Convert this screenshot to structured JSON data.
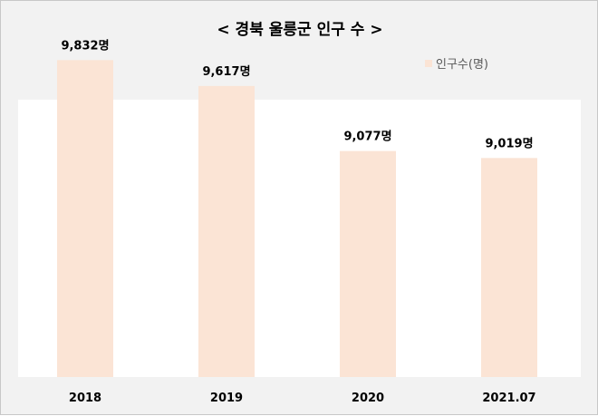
{
  "chart_data": {
    "type": "bar",
    "title": "< 경북 울릉군 인구 수 >",
    "xlabel": "",
    "ylabel": "",
    "categories": [
      "2018",
      "2019",
      "2020",
      "2021.07"
    ],
    "series": [
      {
        "name": "인구수(명)",
        "values": [
          9832,
          9617,
          9077,
          9019
        ],
        "data_labels": [
          "9,832명",
          "9,617명",
          "9,077명",
          "9,019명"
        ]
      }
    ],
    "ylim": [
      7200,
      10000
    ],
    "grid": false,
    "legend_position": "top-right",
    "bar_color": "#fbe4d5"
  }
}
